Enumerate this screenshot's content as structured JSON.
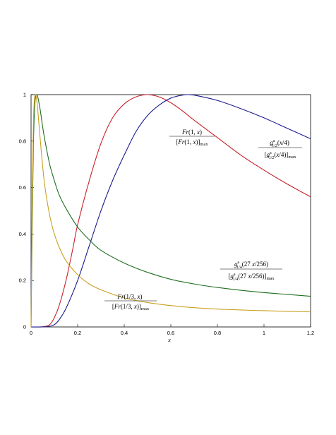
{
  "chart_data": {
    "type": "line",
    "title": "",
    "xlabel": "x",
    "ylabel": "",
    "xlim": [
      0,
      1.2
    ],
    "ylim": [
      0,
      1
    ],
    "grid": false,
    "x_ticks": [
      "0",
      "0.2",
      "0.4",
      "0.6",
      "0.8",
      "1",
      "1.2"
    ],
    "y_ticks": [
      "0",
      "0.2",
      "0.4",
      "0.6",
      "0.8",
      "1"
    ],
    "series": [
      {
        "name": "Fr(1, x) / [Fr(1, x)]max",
        "color": "#c8202a",
        "x": [
          0,
          0.05,
          0.08,
          0.1,
          0.12,
          0.15,
          0.18,
          0.2,
          0.25,
          0.3,
          0.35,
          0.4,
          0.45,
          0.5,
          0.55,
          0.6,
          0.65,
          0.7,
          0.8,
          0.9,
          1.0,
          1.1,
          1.2
        ],
        "y": [
          0,
          0.001,
          0.01,
          0.04,
          0.09,
          0.2,
          0.34,
          0.44,
          0.63,
          0.79,
          0.9,
          0.96,
          0.99,
          1.0,
          0.99,
          0.965,
          0.93,
          0.89,
          0.815,
          0.74,
          0.675,
          0.615,
          0.56
        ]
      },
      {
        "name": "g1/2(x/4) / [g1/2(x/4)]max",
        "color": "#1a1a8c",
        "x": [
          0,
          0.05,
          0.08,
          0.1,
          0.12,
          0.15,
          0.2,
          0.25,
          0.3,
          0.35,
          0.4,
          0.45,
          0.5,
          0.55,
          0.6,
          0.65,
          0.67,
          0.7,
          0.8,
          0.9,
          1.0,
          1.1,
          1.2
        ],
        "y": [
          0,
          0.0,
          0.003,
          0.01,
          0.03,
          0.08,
          0.2,
          0.35,
          0.5,
          0.63,
          0.74,
          0.84,
          0.91,
          0.955,
          0.985,
          0.998,
          1.0,
          0.998,
          0.975,
          0.94,
          0.9,
          0.855,
          0.81
        ]
      },
      {
        "name": "g1/4(27x/256) / [g1/4(27x/256)]max",
        "color": "#1f6e1f",
        "x": [
          0,
          0.005,
          0.01,
          0.015,
          0.02,
          0.025,
          0.03,
          0.04,
          0.05,
          0.06,
          0.08,
          0.1,
          0.12,
          0.15,
          0.2,
          0.25,
          0.3,
          0.4,
          0.5,
          0.6,
          0.7,
          0.8,
          0.9,
          1.0,
          1.1,
          1.2
        ],
        "y": [
          0,
          0.45,
          0.78,
          0.94,
          0.995,
          1.0,
          0.985,
          0.93,
          0.86,
          0.8,
          0.7,
          0.63,
          0.57,
          0.51,
          0.43,
          0.375,
          0.33,
          0.275,
          0.235,
          0.205,
          0.185,
          0.17,
          0.158,
          0.148,
          0.14,
          0.132
        ]
      },
      {
        "name": "Fr(1/3, x) / [Fr(1/3, x)]max",
        "color": "#c9a020",
        "x": [
          0,
          0.005,
          0.01,
          0.015,
          0.02,
          0.025,
          0.03,
          0.04,
          0.05,
          0.06,
          0.08,
          0.1,
          0.12,
          0.15,
          0.2,
          0.25,
          0.3,
          0.4,
          0.5,
          0.6,
          0.7,
          0.8,
          0.9,
          1.0,
          1.1,
          1.2
        ],
        "y": [
          0,
          0.55,
          0.88,
          0.985,
          1.0,
          0.97,
          0.92,
          0.8,
          0.69,
          0.6,
          0.48,
          0.4,
          0.345,
          0.285,
          0.225,
          0.185,
          0.16,
          0.125,
          0.105,
          0.092,
          0.083,
          0.077,
          0.073,
          0.07,
          0.067,
          0.065
        ]
      }
    ],
    "annotations": [
      {
        "for": "Fr(1, x)",
        "x": 0.6,
        "y": 0.835
      },
      {
        "for": "g1/2(x/4)",
        "x": 0.99,
        "y": 0.79
      },
      {
        "for": "g1/4(27x/256)",
        "x": 0.99,
        "y": 0.25
      },
      {
        "for": "Fr(1/3, x)",
        "x": 0.4,
        "y": 0.115
      }
    ]
  }
}
